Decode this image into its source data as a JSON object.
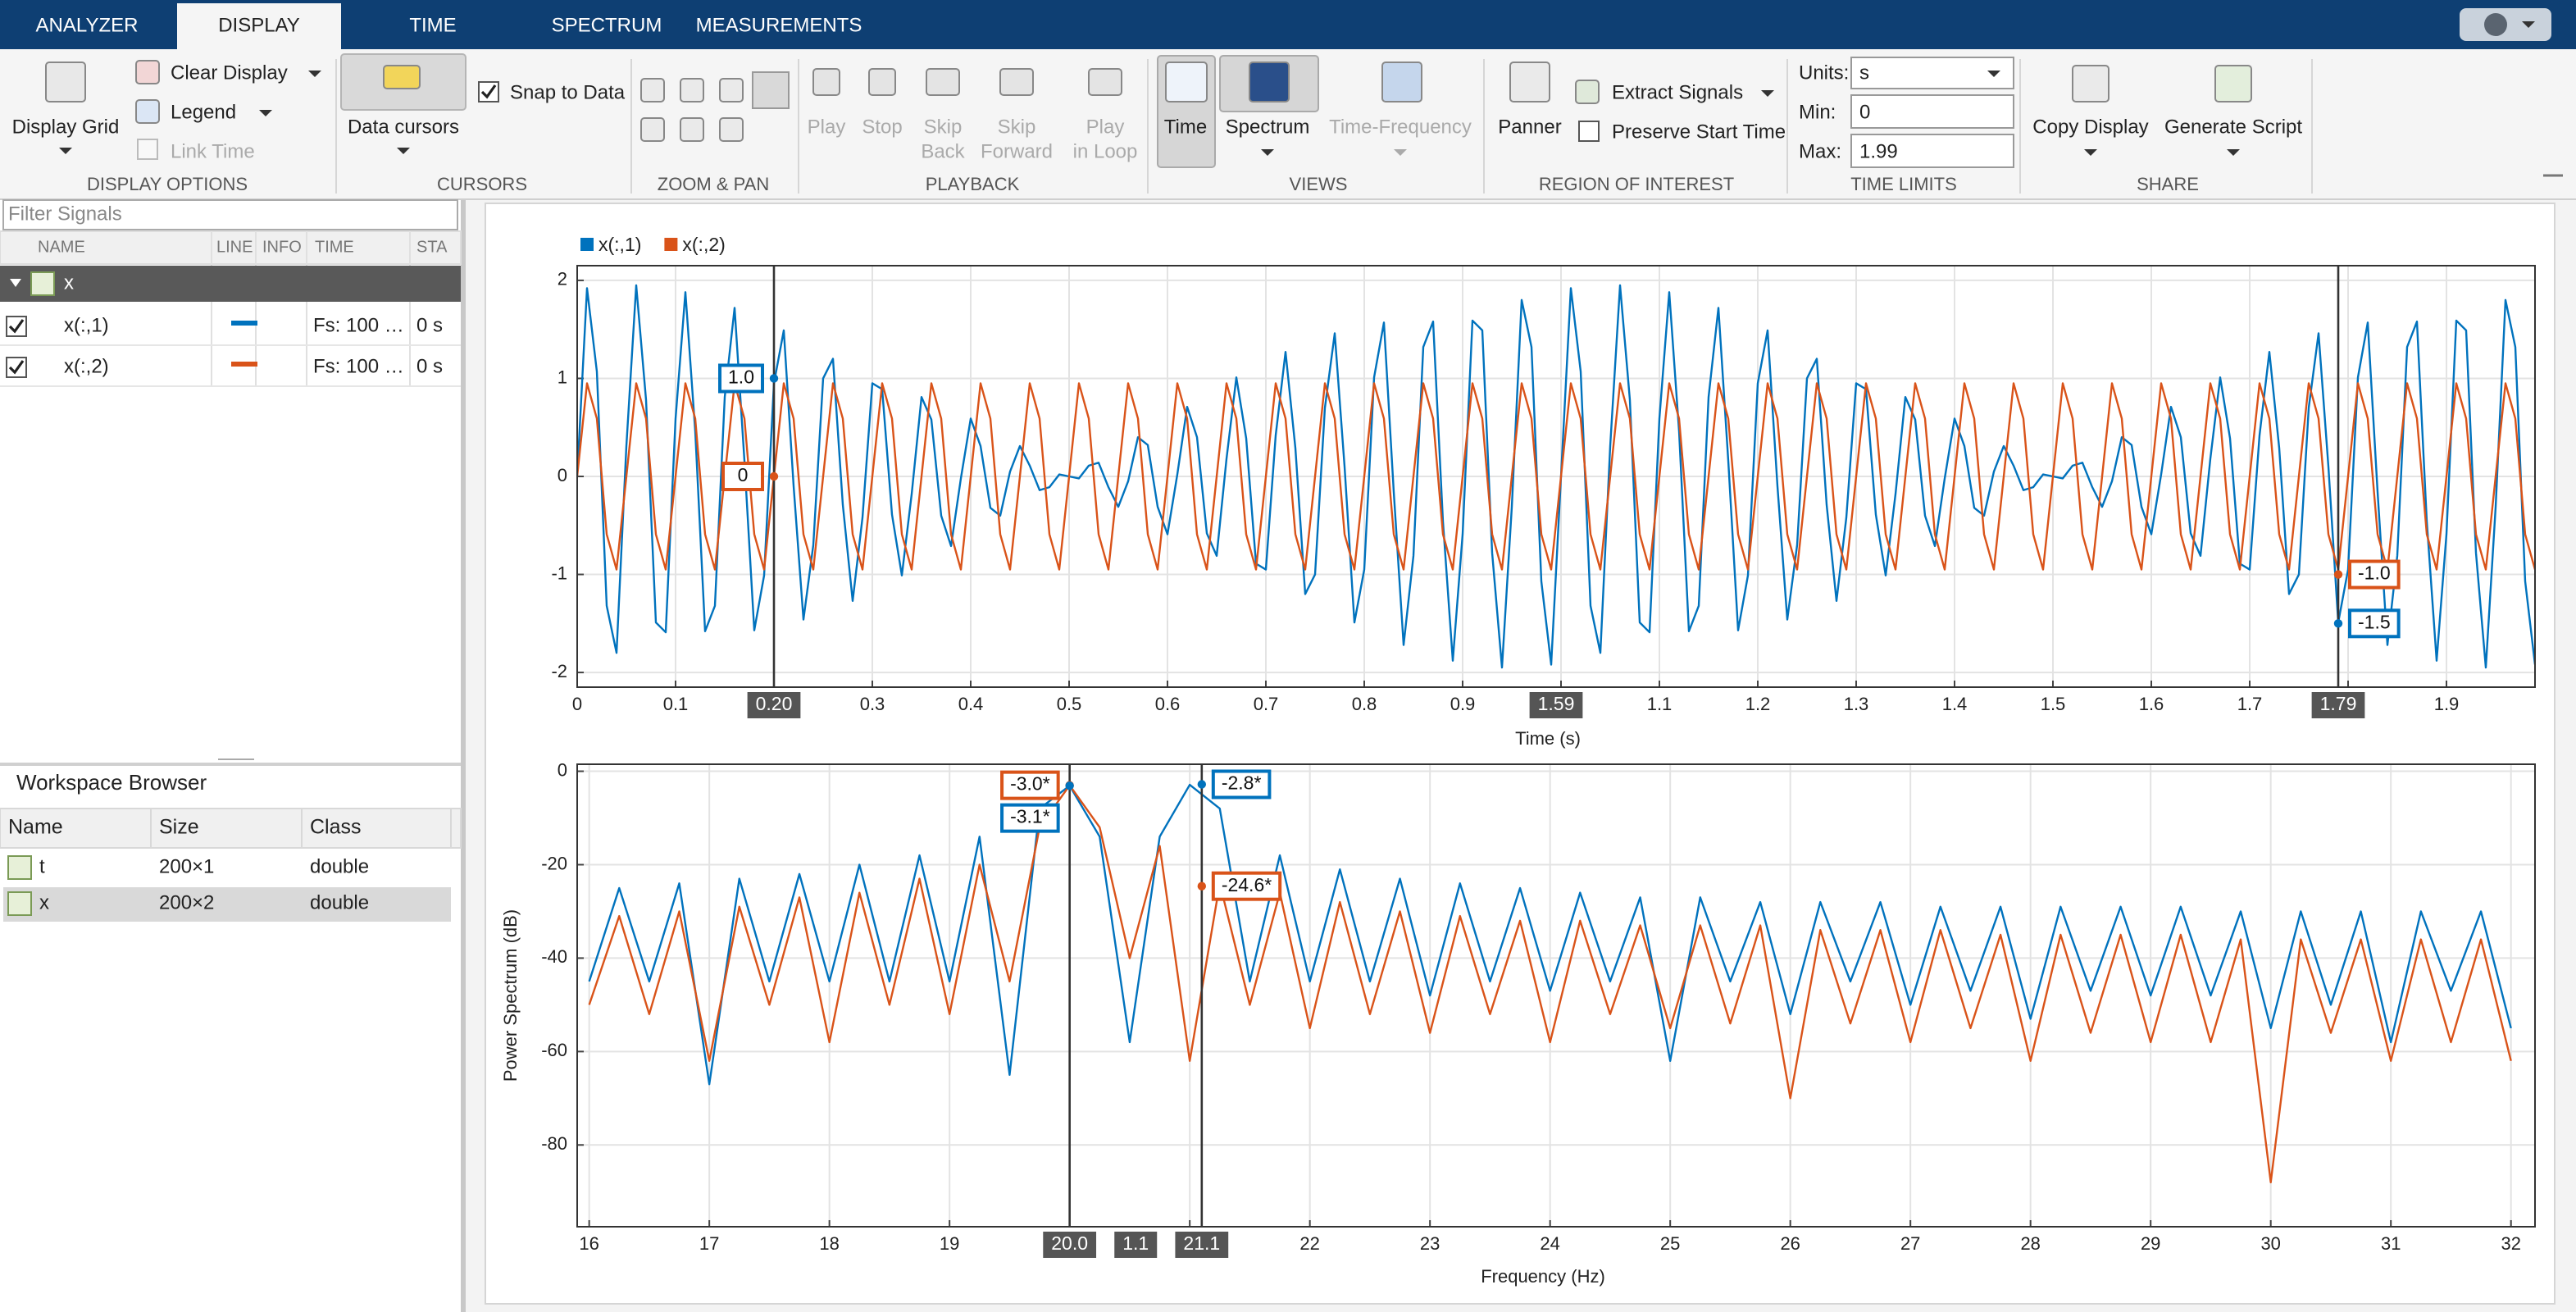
{
  "tabs": [
    "ANALYZER",
    "DISPLAY",
    "TIME",
    "SPECTRUM",
    "MEASUREMENTS"
  ],
  "toolstrip": {
    "display_options": {
      "title": "DISPLAY OPTIONS",
      "display_grid": "Display Grid",
      "clear_display": "Clear Display",
      "legend": "Legend",
      "link_time": "Link Time"
    },
    "cursors": {
      "title": "CURSORS",
      "data_cursors": "Data cursors",
      "snap_to_data": "Snap to Data"
    },
    "zoom_pan": {
      "title": "ZOOM & PAN"
    },
    "playback": {
      "title": "PLAYBACK",
      "play": "Play",
      "stop": "Stop",
      "skip_back": [
        "Skip",
        "Back"
      ],
      "skip_forward": [
        "Skip",
        "Forward"
      ],
      "play_in_loop": [
        "Play",
        "in Loop"
      ]
    },
    "views": {
      "title": "VIEWS",
      "time": "Time",
      "spectrum": "Spectrum",
      "time_frequency": "Time-Frequency"
    },
    "region_of_interest": {
      "title": "REGION OF INTEREST",
      "panner": "Panner",
      "extract_signals": "Extract Signals",
      "preserve_start_time": "Preserve Start Time"
    },
    "time_limits": {
      "title": "TIME LIMITS",
      "units_label": "Units:",
      "units": "s",
      "min_label": "Min:",
      "min": 0,
      "max_label": "Max:",
      "max": 1.99
    },
    "share": {
      "title": "SHARE",
      "copy_display": "Copy Display",
      "generate_script": "Generate Script"
    }
  },
  "signals": {
    "filter_placeholder": "Filter Signals",
    "columns": [
      "NAME",
      "LINE",
      "INFO",
      "TIME",
      "STA"
    ],
    "group": "x",
    "rows": [
      {
        "name": "x(:,1)",
        "time": "Fs: 100 …",
        "start": "0 s"
      },
      {
        "name": "x(:,2)",
        "time": "Fs: 100 …",
        "start": "0 s"
      }
    ]
  },
  "workspace": {
    "title": "Workspace Browser",
    "columns": [
      "Name",
      "Size",
      "Class"
    ],
    "rows": [
      [
        "t",
        "200×1",
        "double"
      ],
      [
        "x",
        "200×2",
        "double"
      ]
    ]
  },
  "chart_data": [
    {
      "type": "line",
      "x_label": "Time (s)",
      "x": [
        0,
        0.01,
        0.02,
        0.03,
        0.04,
        0.05,
        0.06,
        0.07,
        0.08,
        0.09,
        0.1,
        0.11,
        0.12,
        0.13,
        0.14,
        0.15,
        0.16,
        0.17,
        0.18,
        0.19,
        0.2,
        0.21,
        0.22,
        0.23,
        0.24,
        0.25,
        0.26,
        0.27,
        0.28,
        0.29,
        0.3,
        0.31,
        0.32,
        0.33,
        0.34,
        0.35,
        0.36,
        0.37,
        0.38,
        0.39,
        0.4,
        0.41,
        0.42,
        0.43,
        0.44,
        0.45,
        0.46,
        0.47,
        0.48,
        0.49,
        0.5,
        0.51,
        0.52,
        0.53,
        0.54,
        0.55,
        0.56,
        0.57,
        0.58,
        0.59,
        0.6,
        0.61,
        0.62,
        0.63,
        0.64,
        0.65,
        0.66,
        0.67,
        0.68,
        0.69,
        0.7,
        0.71,
        0.72,
        0.73,
        0.74,
        0.75,
        0.76,
        0.77,
        0.78,
        0.79,
        0.8,
        0.81,
        0.82,
        0.83,
        0.84,
        0.85,
        0.86,
        0.87,
        0.88,
        0.89,
        0.9,
        0.91,
        0.92,
        0.93,
        0.94,
        0.95,
        0.96,
        0.97,
        0.98,
        0.99,
        1,
        1.01,
        1.02,
        1.03,
        1.04,
        1.05,
        1.06,
        1.07,
        1.08,
        1.09,
        1.1,
        1.11,
        1.12,
        1.13,
        1.14,
        1.15,
        1.16,
        1.17,
        1.18,
        1.19,
        1.2,
        1.21,
        1.22,
        1.23,
        1.24,
        1.25,
        1.26,
        1.27,
        1.28,
        1.29,
        1.3,
        1.31,
        1.32,
        1.33,
        1.34,
        1.35,
        1.36,
        1.37,
        1.38,
        1.39,
        1.4,
        1.41,
        1.42,
        1.43,
        1.44,
        1.45,
        1.46,
        1.47,
        1.48,
        1.49,
        1.5,
        1.51,
        1.52,
        1.53,
        1.54,
        1.55,
        1.56,
        1.57,
        1.58,
        1.59,
        1.6,
        1.61,
        1.62,
        1.63,
        1.64,
        1.65,
        1.66,
        1.67,
        1.68,
        1.69,
        1.7,
        1.71,
        1.72,
        1.73,
        1.74,
        1.75,
        1.76,
        1.77,
        1.78,
        1.79,
        1.8,
        1.81,
        1.82,
        1.83,
        1.84,
        1.85,
        1.86,
        1.87,
        1.88,
        1.89,
        1.9,
        1.91,
        1.92,
        1.93,
        1.94,
        1.95,
        1.96,
        1.97,
        1.98,
        1.99
      ],
      "series": [
        {
          "name": "x(:,1)",
          "color": "#0072bd",
          "values": [
            0,
            1.92,
            1.07,
            -1.32,
            -1.8,
            0.31,
            1.95,
            0.78,
            -1.49,
            -1.59,
            0.59,
            1.88,
            0.46,
            -1.58,
            -1.32,
            0.81,
            1.72,
            0.16,
            -1.57,
            -1.01,
            0.95,
            1.49,
            -0.1,
            -1.46,
            -0.7,
            1,
            1.2,
            -0.29,
            -1.27,
            -0.42,
            0.95,
            0.89,
            -0.39,
            -1.01,
            -0.18,
            0.81,
            0.58,
            -0.4,
            -0.71,
            -0.02,
            0.59,
            0.31,
            -0.32,
            -0.4,
            0.05,
            0.31,
            0.11,
            -0.14,
            -0.11,
            0.02,
            0,
            -0.02,
            0.11,
            0.14,
            -0.11,
            -0.31,
            -0.05,
            0.4,
            0.32,
            -0.31,
            -0.59,
            0.02,
            0.71,
            0.4,
            -0.58,
            -0.81,
            0.18,
            1.01,
            0.39,
            -0.89,
            -0.95,
            0.42,
            1.27,
            0.29,
            -1.2,
            -1,
            0.7,
            1.46,
            0.1,
            -1.49,
            -0.95,
            1.01,
            1.57,
            -0.16,
            -1.72,
            -0.81,
            1.32,
            1.58,
            -0.46,
            -1.88,
            -0.59,
            1.59,
            1.49,
            -0.78,
            -1.95,
            -0.31,
            1.8,
            1.32,
            -1.07,
            -1.92,
            0,
            1.92,
            1.07,
            -1.32,
            -1.8,
            0.31,
            1.95,
            0.78,
            -1.49,
            -1.59,
            0.59,
            1.88,
            0.46,
            -1.58,
            -1.32,
            0.81,
            1.72,
            0.16,
            -1.57,
            -1.01,
            0.95,
            1.49,
            -0.1,
            -1.46,
            -0.7,
            1,
            1.2,
            -0.29,
            -1.27,
            -0.42,
            0.95,
            0.89,
            -0.39,
            -1.01,
            -0.18,
            0.81,
            0.58,
            -0.4,
            -0.71,
            -0.02,
            0.59,
            0.31,
            -0.32,
            -0.4,
            0.05,
            0.31,
            0.11,
            -0.14,
            -0.11,
            0.02,
            0,
            -0.02,
            0.11,
            0.14,
            -0.11,
            -0.31,
            -0.05,
            0.4,
            0.32,
            -0.31,
            -0.59,
            0.02,
            0.71,
            0.4,
            -0.58,
            -0.81,
            0.18,
            1.01,
            0.39,
            -0.89,
            -0.95,
            0.42,
            1.27,
            0.29,
            -1.2,
            -1,
            0.7,
            1.46,
            0.1,
            -1.49,
            -0.95,
            1.01,
            1.57,
            -0.16,
            -1.72,
            -0.81,
            1.32,
            1.58,
            -0.46,
            -1.88,
            -0.59,
            1.59,
            1.49,
            -0.78,
            -1.95,
            -0.31,
            1.8,
            1.32,
            -1.07,
            -1.92
          ]
        },
        {
          "name": "x(:,2)",
          "color": "#d95319",
          "values": [
            0,
            0.95,
            0.59,
            -0.59,
            -0.95,
            0,
            0.95,
            0.59,
            -0.59,
            -0.95,
            0,
            0.95,
            0.59,
            -0.59,
            -0.95,
            0,
            0.95,
            0.59,
            -0.59,
            -0.95,
            0,
            0.95,
            0.59,
            -0.59,
            -0.95,
            0,
            0.95,
            0.59,
            -0.59,
            -0.95,
            0,
            0.95,
            0.59,
            -0.59,
            -0.95,
            0,
            0.95,
            0.59,
            -0.59,
            -0.95,
            0,
            0.95,
            0.59,
            -0.59,
            -0.95,
            0,
            0.95,
            0.59,
            -0.59,
            -0.95,
            0,
            0.95,
            0.59,
            -0.59,
            -0.95,
            0,
            0.95,
            0.59,
            -0.59,
            -0.95,
            0,
            0.95,
            0.59,
            -0.59,
            -0.95,
            0,
            0.95,
            0.59,
            -0.59,
            -0.95,
            0,
            0.95,
            0.59,
            -0.59,
            -0.95,
            0,
            0.95,
            0.59,
            -0.59,
            -0.95,
            0,
            0.95,
            0.59,
            -0.59,
            -0.95,
            0,
            0.95,
            0.59,
            -0.59,
            -0.95,
            0,
            0.95,
            0.59,
            -0.59,
            -0.95,
            0,
            0.95,
            0.59,
            -0.59,
            -0.95,
            0,
            0.95,
            0.59,
            -0.59,
            -0.95,
            0,
            0.95,
            0.59,
            -0.59,
            -0.95,
            0,
            0.95,
            0.59,
            -0.59,
            -0.95,
            0,
            0.95,
            0.59,
            -0.59,
            -0.95,
            0,
            0.95,
            0.59,
            -0.59,
            -0.95,
            0,
            0.95,
            0.59,
            -0.59,
            -0.95,
            0,
            0.95,
            0.59,
            -0.59,
            -0.95,
            0,
            0.95,
            0.59,
            -0.59,
            -0.95,
            0,
            0.95,
            0.59,
            -0.59,
            -0.95,
            0,
            0.95,
            0.59,
            -0.59,
            -0.95,
            0,
            0.95,
            0.59,
            -0.59,
            -0.95,
            0,
            0.95,
            0.59,
            -0.59,
            -0.95,
            0,
            0.95,
            0.59,
            -0.59,
            -0.95,
            0,
            0.95,
            0.59,
            -0.59,
            -0.95,
            0,
            0.95,
            0.59,
            -0.59,
            -0.95,
            0,
            0.95,
            0.59,
            -0.59,
            -0.95,
            0,
            0.95,
            0.59,
            -0.59,
            -0.95,
            0,
            0.95,
            0.59,
            -0.59,
            -0.95,
            0,
            0.95,
            0.59,
            -0.59,
            -0.95,
            0,
            0.95,
            0.59,
            -0.59,
            -0.95
          ]
        }
      ],
      "xlim": [
        0,
        1.99
      ],
      "ylim": [
        -2.15,
        2.15
      ],
      "xticks": [
        0,
        0.1,
        0.2,
        0.3,
        0.4,
        0.5,
        0.6,
        0.7,
        0.8,
        0.9,
        1,
        1.1,
        1.2,
        1.3,
        1.4,
        1.5,
        1.6,
        1.7,
        1.8,
        1.9
      ],
      "yticks": [
        -2,
        -1,
        0,
        1,
        2
      ],
      "grid": true,
      "legend": "top-left",
      "cursors": [
        {
          "x": 0.2,
          "x_label": "0.20",
          "values": [
            1.0,
            0
          ],
          "value_labels": [
            "1.0",
            "0"
          ]
        },
        {
          "x": 1.79,
          "x_label": "1.79",
          "values": [
            -1.5,
            -1.0
          ],
          "value_labels": [
            "-1.5",
            "-1.0"
          ]
        }
      ],
      "cursor_delta": {
        "value": 1.59,
        "label": "1.59"
      }
    },
    {
      "type": "line",
      "x_label": "Frequency (Hz)",
      "y_label": "Power Spectrum (dB)",
      "x": [
        16,
        16.25,
        16.5,
        16.75,
        17,
        17.25,
        17.5,
        17.75,
        18,
        18.25,
        18.5,
        18.75,
        19,
        19.25,
        19.5,
        19.75,
        20,
        20.25,
        20.5,
        20.75,
        21,
        21.25,
        21.5,
        21.75,
        22,
        22.25,
        22.5,
        22.75,
        23,
        23.25,
        23.5,
        23.75,
        24,
        24.25,
        24.5,
        24.75,
        25,
        25.25,
        25.5,
        25.75,
        26,
        26.25,
        26.5,
        26.75,
        27,
        27.25,
        27.5,
        27.75,
        28,
        28.25,
        28.5,
        28.75,
        29,
        29.25,
        29.5,
        29.75,
        30,
        30.25,
        30.5,
        30.75,
        31,
        31.25,
        31.5,
        31.75,
        32
      ],
      "series": [
        {
          "name": "x(:,1)",
          "color": "#0072bd",
          "values": [
            -45,
            -25,
            -45,
            -24,
            -67,
            -23,
            -45,
            -22,
            -45,
            -20,
            -45,
            -18,
            -45,
            -14,
            -65,
            -8,
            -3.1,
            -14,
            -58,
            -14,
            -2.9,
            -8,
            -45,
            -18,
            -45,
            -21,
            -45,
            -23,
            -48,
            -24,
            -45,
            -25,
            -47,
            -26,
            -45,
            -27,
            -62,
            -27,
            -45,
            -28,
            -52,
            -28,
            -45,
            -28,
            -50,
            -29,
            -47,
            -29,
            -53,
            -29,
            -47,
            -29,
            -48,
            -29,
            -48,
            -30,
            -55,
            -30,
            -50,
            -30,
            -58,
            -30,
            -47,
            -30,
            -55
          ]
        },
        {
          "name": "x(:,2)",
          "color": "#d95319",
          "values": [
            -50,
            -31,
            -52,
            -30,
            -62,
            -29,
            -50,
            -27,
            -58,
            -26,
            -50,
            -23,
            -52,
            -20,
            -45,
            -12,
            -3.0,
            -12,
            -40,
            -16,
            -62,
            -24,
            -50,
            -26,
            -55,
            -28,
            -52,
            -30,
            -56,
            -31,
            -52,
            -32,
            -58,
            -32,
            -52,
            -33,
            -55,
            -33,
            -54,
            -33,
            -70,
            -34,
            -54,
            -34,
            -58,
            -34,
            -55,
            -35,
            -62,
            -35,
            -56,
            -35,
            -58,
            -35,
            -58,
            -36,
            -88,
            -36,
            -56,
            -36,
            -62,
            -36,
            -58,
            -36,
            -62
          ]
        }
      ],
      "xlim": [
        15.9,
        32.2
      ],
      "ylim": [
        -97.5,
        1.5
      ],
      "xticks": [
        16,
        17,
        18,
        19,
        20,
        21,
        22,
        23,
        24,
        25,
        26,
        27,
        28,
        29,
        30,
        31,
        32
      ],
      "yticks": [
        -80,
        -60,
        -40,
        -20,
        0
      ],
      "grid": true,
      "cursors": [
        {
          "x": 20.0,
          "x_label": "20.0",
          "values": [
            -3.1,
            -3.0
          ],
          "value_labels": [
            "-3.1*",
            "-3.0*"
          ]
        },
        {
          "x": 21.1,
          "x_label": "21.1",
          "values": [
            -2.8,
            -24.6
          ],
          "value_labels": [
            "-2.8*",
            "-24.6*"
          ]
        }
      ],
      "cursor_delta": {
        "value": 1.1,
        "label": "1.1"
      }
    }
  ]
}
